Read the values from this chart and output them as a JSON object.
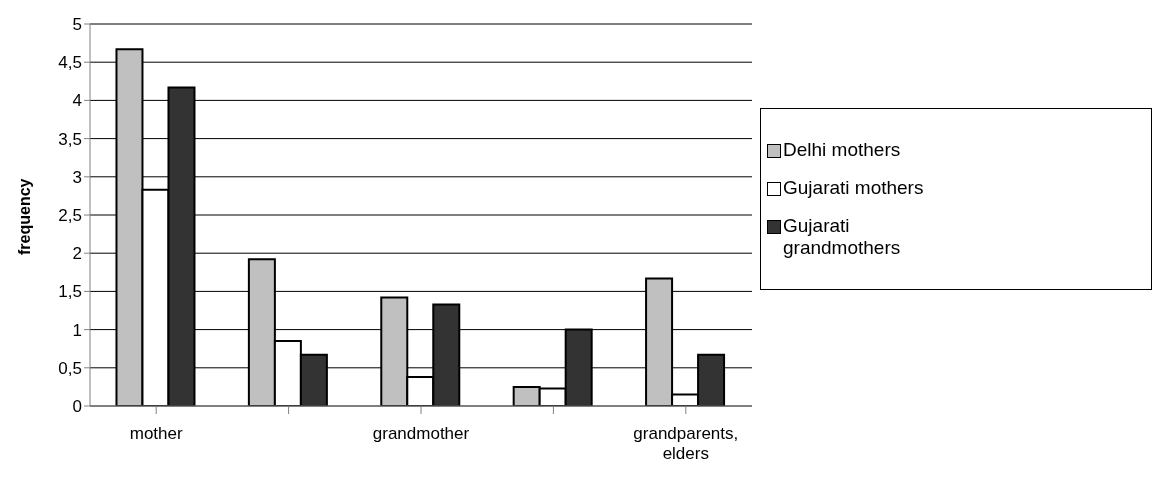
{
  "chart_data": {
    "type": "bar",
    "ylabel": "frequency",
    "categories": [
      "mother",
      null,
      "grandmother",
      null,
      "grandparents, elders"
    ],
    "series": [
      {
        "name": "Delhi mothers",
        "color": "#c0c0c0",
        "values": [
          4.67,
          1.92,
          1.42,
          0.25,
          1.67
        ]
      },
      {
        "name": "Gujarati mothers",
        "color": "#ffffff",
        "values": [
          2.83,
          0.85,
          0.38,
          0.23,
          0.15
        ]
      },
      {
        "name": "Gujarati grandmothers",
        "color": "#333333",
        "values": [
          4.17,
          0.67,
          1.33,
          1.0,
          0.67
        ]
      }
    ],
    "ylim": [
      0,
      5
    ],
    "yticks": [
      0,
      {
        "value": 0.5,
        "label": "0,5"
      },
      1,
      {
        "value": 1.5,
        "label": "1,5"
      },
      2,
      {
        "value": 2.5,
        "label": "2,5"
      },
      3,
      {
        "value": 3.5,
        "label": "3,5"
      },
      4,
      {
        "value": 4.5,
        "label": "4,5"
      },
      5
    ],
    "grid": "y",
    "legend": "right"
  }
}
